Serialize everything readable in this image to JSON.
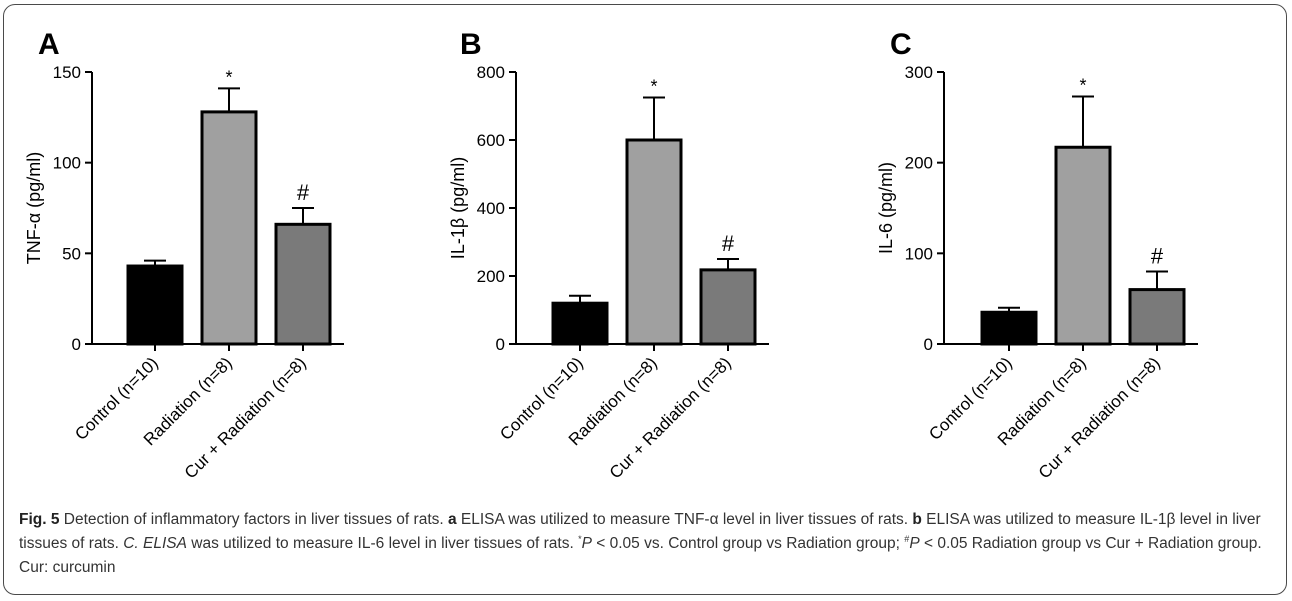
{
  "chart_data": [
    {
      "type": "bar",
      "panel_letter": "A",
      "categories": [
        "Control (n=10)",
        "Radiation (n=8)",
        "Cur + Radiation (n=8)"
      ],
      "values": [
        43,
        128,
        66
      ],
      "errors": [
        3,
        13,
        9
      ],
      "markers": [
        "",
        "*",
        "#"
      ],
      "ylabel": "TNF-α (pg/ml)",
      "ylim": [
        0,
        150
      ],
      "yticks": [
        0,
        50,
        100,
        150
      ],
      "colors": [
        "#000000",
        "#a0a0a0",
        "#7a7a7a"
      ]
    },
    {
      "type": "bar",
      "panel_letter": "B",
      "categories": [
        "Control (n=10)",
        "Radiation (n=8)",
        "Cur + Radiation (n=8)"
      ],
      "values": [
        120,
        600,
        218
      ],
      "errors": [
        22,
        125,
        32
      ],
      "markers": [
        "",
        "*",
        "#"
      ],
      "ylabel": "IL-1β (pg/ml)",
      "ylim": [
        0,
        800
      ],
      "yticks": [
        0,
        200,
        400,
        600,
        800
      ],
      "colors": [
        "#000000",
        "#a0a0a0",
        "#7a7a7a"
      ]
    },
    {
      "type": "bar",
      "panel_letter": "C",
      "categories": [
        "Control (n=10)",
        "Radiation (n=8)",
        "Cur + Radiation (n=8)"
      ],
      "values": [
        35,
        217,
        60
      ],
      "errors": [
        5,
        56,
        20
      ],
      "markers": [
        "",
        "*",
        "#"
      ],
      "ylabel": "IL-6 (pg/ml)",
      "ylim": [
        0,
        300
      ],
      "yticks": [
        0,
        100,
        200,
        300
      ],
      "colors": [
        "#000000",
        "#a0a0a0",
        "#7a7a7a"
      ]
    }
  ],
  "caption": {
    "fig_label": "Fig. 5",
    "title": " Detection of inflammatory factors in liver tissues of rats. ",
    "a_label": "a",
    "a_text": " ELISA was utilized to measure TNF-α level in liver tissues of rats. ",
    "b_label": "b",
    "b_text": " ELISA was utilized to measure IL-1β level in liver tissues of rats. ",
    "c_label": "C. ELISA",
    "c_text": " was utilized to measure IL-6 level in liver tissues of rats. ",
    "sig1_sup": "*",
    "sig1_p": "P",
    "sig1_text": " < 0.05 vs. Control group vs Radiation group; ",
    "sig2_sup": "#",
    "sig2_p": "P",
    "sig2_text": " < 0.05 Radiation group vs Cur + Radiation group. Cur: curcumin"
  }
}
